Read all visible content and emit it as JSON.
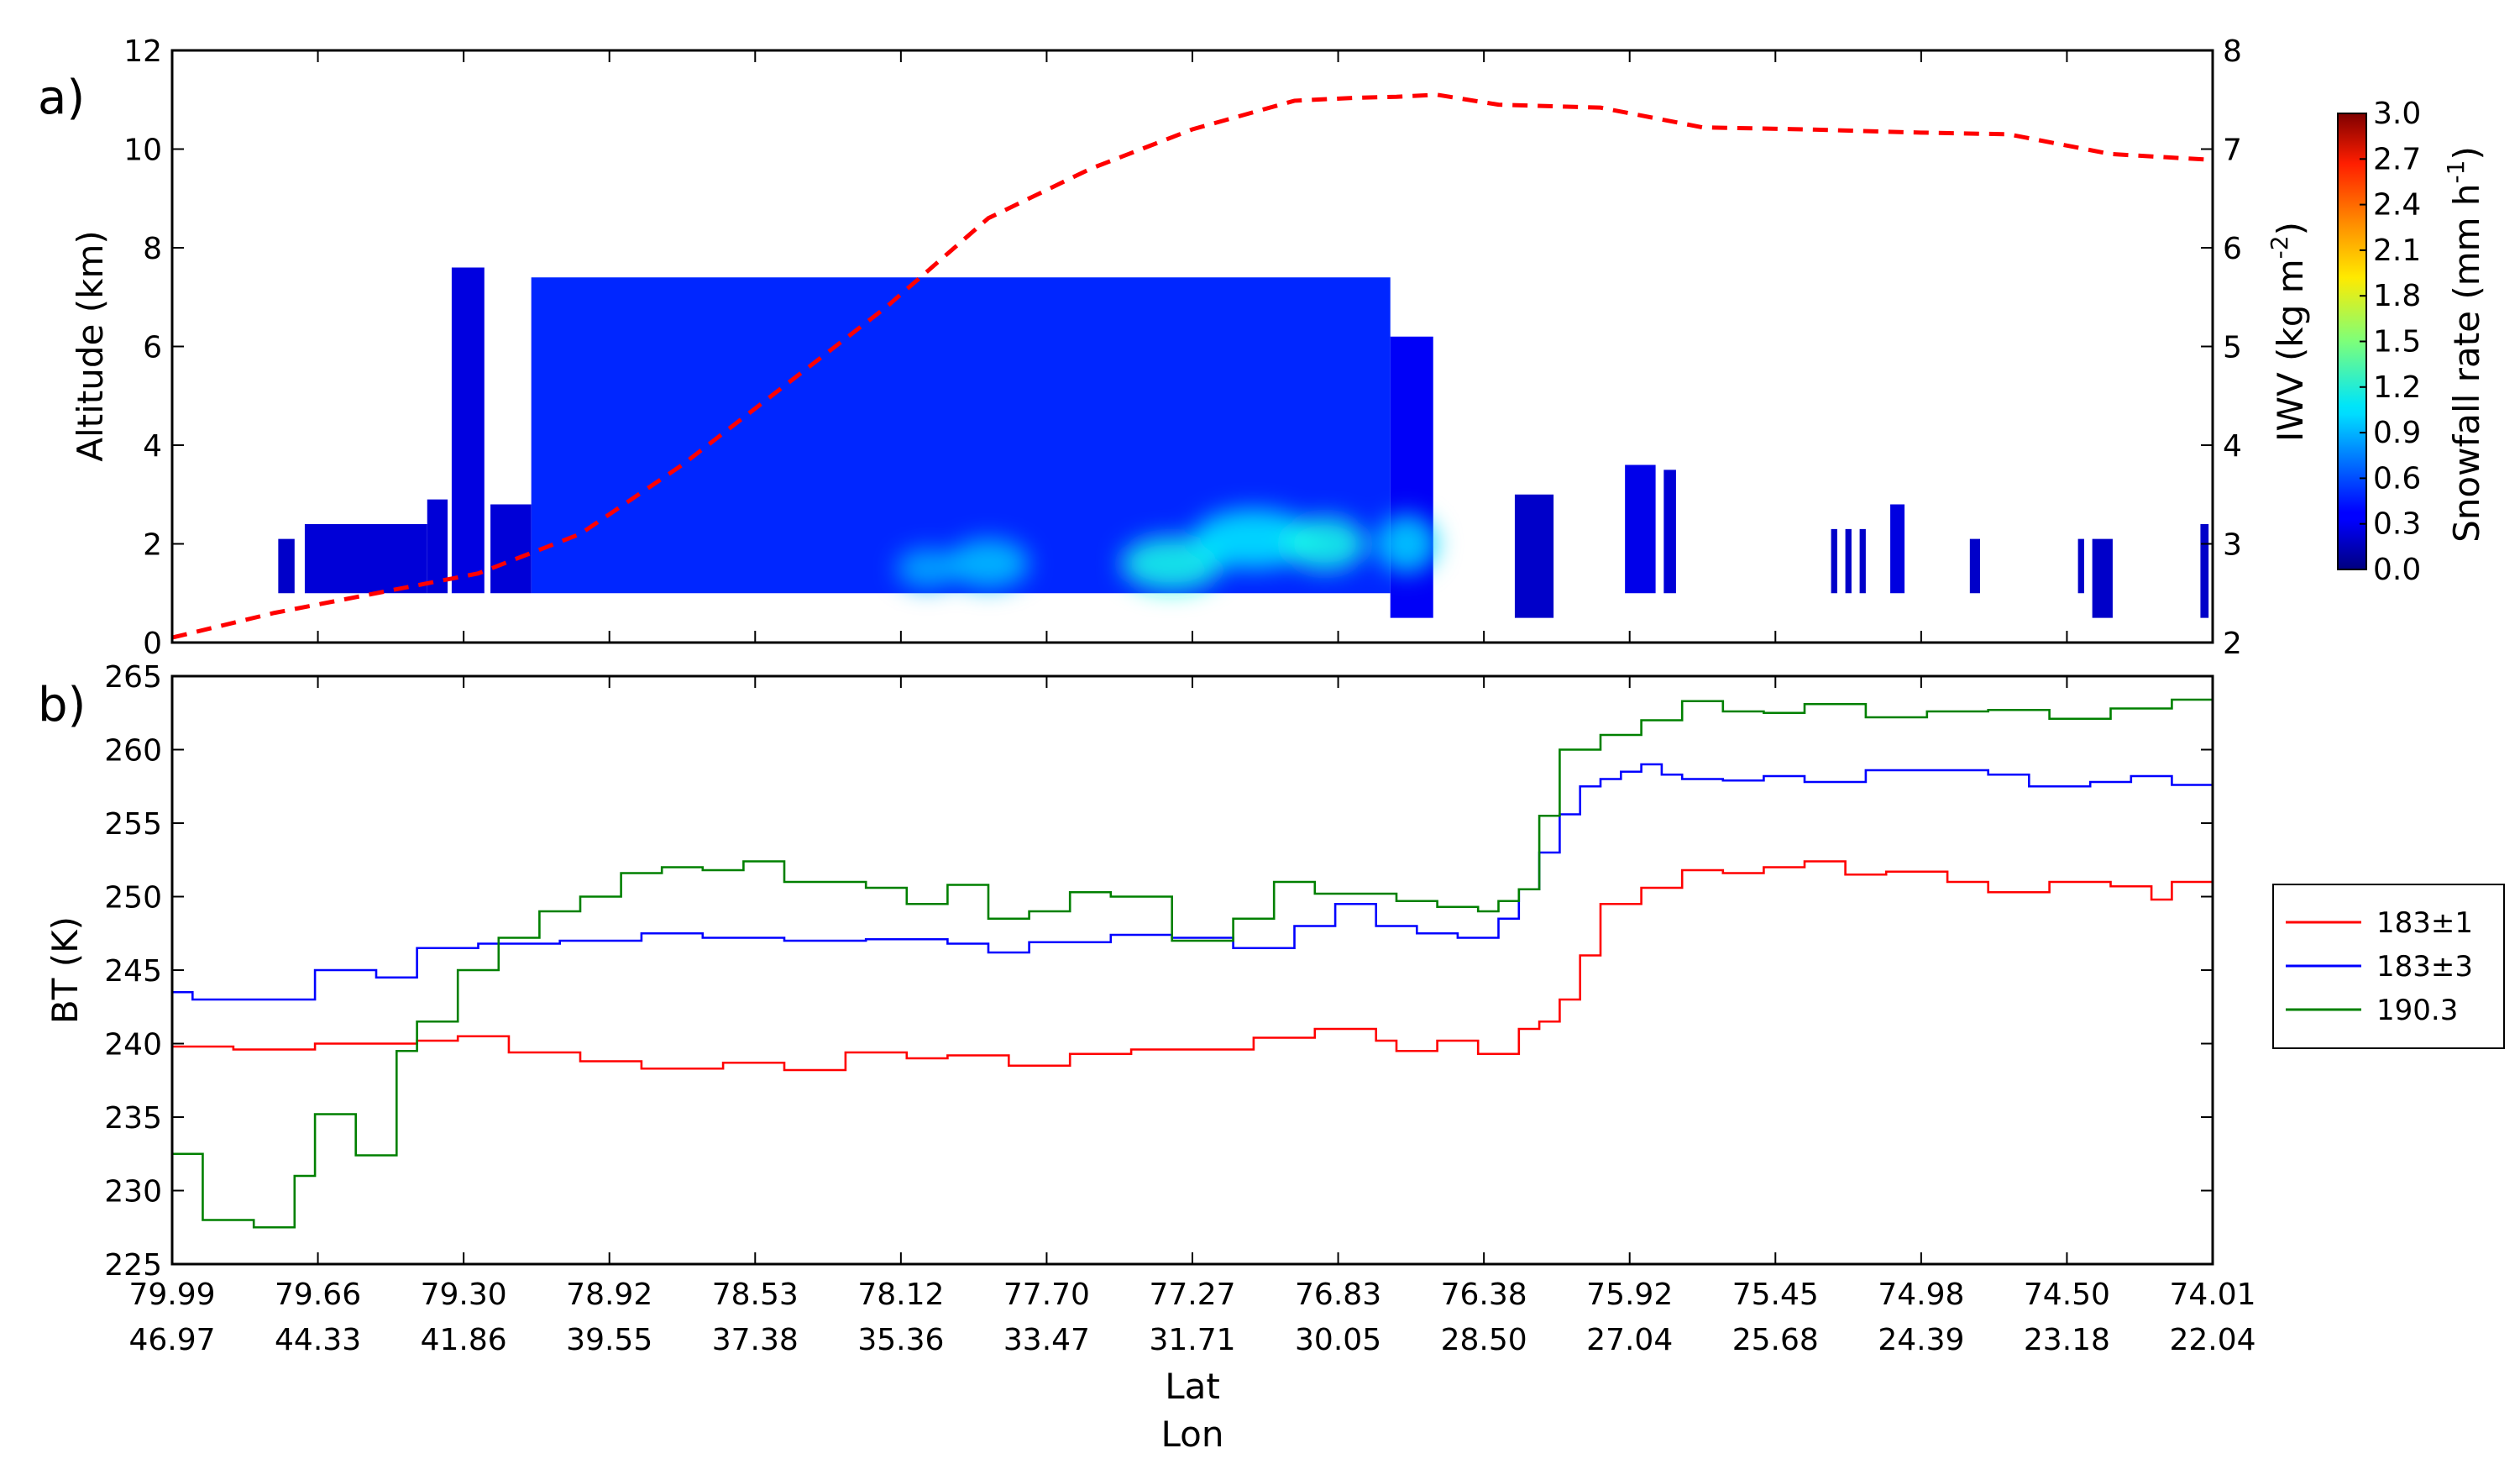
{
  "chart_data": [
    {
      "panel_label": "a)",
      "type": "heatmap",
      "ylabel": "Altitude (km)",
      "ylim": [
        0,
        12
      ],
      "yticks": [
        0,
        2,
        4,
        6,
        8,
        10,
        12
      ],
      "y2label_main": "IWV (kg m",
      "y2label_exp": "-2",
      "y2label_end": ")",
      "y2lim": [
        2,
        8
      ],
      "y2ticks": [
        2,
        3,
        4,
        5,
        6,
        7,
        8
      ],
      "colorbar": {
        "label_main": "Snowfall rate (mm h",
        "label_exp": "-1",
        "label_end": ")",
        "range": [
          0.0,
          3.0
        ],
        "ticks": [
          "0.0",
          "0.3",
          "0.6",
          "0.9",
          "1.2",
          "1.5",
          "1.8",
          "2.1",
          "2.4",
          "2.7",
          "3.0"
        ],
        "colormap": "jet"
      },
      "iwv_line": {
        "color": "#ff0000",
        "style": "dashed",
        "x_frac": [
          0.0,
          0.05,
          0.1,
          0.15,
          0.2,
          0.25,
          0.3,
          0.35,
          0.4,
          0.45,
          0.5,
          0.55,
          0.58,
          0.6,
          0.62,
          0.65,
          0.7,
          0.75,
          0.8,
          0.85,
          0.9,
          0.95,
          1.0
        ],
        "values": [
          2.05,
          2.3,
          2.5,
          2.7,
          3.1,
          3.8,
          4.6,
          5.4,
          6.3,
          6.8,
          7.2,
          7.49,
          7.52,
          7.53,
          7.55,
          7.45,
          7.42,
          7.22,
          7.2,
          7.17,
          7.15,
          6.95,
          6.89
        ]
      },
      "snow_cells": [
        {
          "x0": 0.052,
          "x1": 0.06,
          "top": 2.1,
          "bottom": 1.0,
          "intensity": 0.05
        },
        {
          "x0": 0.065,
          "x1": 0.125,
          "top": 2.4,
          "bottom": 1.0,
          "intensity": 0.08
        },
        {
          "x0": 0.125,
          "x1": 0.135,
          "top": 2.9,
          "bottom": 1.0,
          "intensity": 0.08
        },
        {
          "x0": 0.137,
          "x1": 0.153,
          "top": 7.6,
          "bottom": 1.0,
          "intensity": 0.1
        },
        {
          "x0": 0.156,
          "x1": 0.176,
          "top": 2.8,
          "bottom": 1.0,
          "intensity": 0.08
        },
        {
          "x0": 0.176,
          "x1": 0.597,
          "top": 7.4,
          "bottom": 1.0,
          "intensity": 0.25
        },
        {
          "x0": 0.597,
          "x1": 0.618,
          "top": 6.2,
          "bottom": 0.5,
          "intensity": 0.15
        },
        {
          "x0": 0.658,
          "x1": 0.677,
          "top": 3.0,
          "bottom": 0.5,
          "intensity": 0.05
        },
        {
          "x0": 0.712,
          "x1": 0.727,
          "top": 3.6,
          "bottom": 1.0,
          "intensity": 0.12
        },
        {
          "x0": 0.731,
          "x1": 0.737,
          "top": 3.5,
          "bottom": 1.0,
          "intensity": 0.08
        },
        {
          "x0": 0.813,
          "x1": 0.816,
          "top": 2.3,
          "bottom": 1.0,
          "intensity": 0.05
        },
        {
          "x0": 0.82,
          "x1": 0.823,
          "top": 2.3,
          "bottom": 1.0,
          "intensity": 0.05
        },
        {
          "x0": 0.827,
          "x1": 0.83,
          "top": 2.3,
          "bottom": 1.0,
          "intensity": 0.05
        },
        {
          "x0": 0.842,
          "x1": 0.849,
          "top": 2.8,
          "bottom": 1.0,
          "intensity": 0.1
        },
        {
          "x0": 0.881,
          "x1": 0.886,
          "top": 2.1,
          "bottom": 1.0,
          "intensity": 0.05
        },
        {
          "x0": 0.934,
          "x1": 0.937,
          "top": 2.1,
          "bottom": 1.0,
          "intensity": 0.05
        },
        {
          "x0": 0.941,
          "x1": 0.951,
          "top": 2.1,
          "bottom": 0.5,
          "intensity": 0.05
        },
        {
          "x0": 0.994,
          "x1": 0.998,
          "top": 2.4,
          "bottom": 0.5,
          "intensity": 0.05
        }
      ],
      "snow_hotspots": [
        {
          "x": 0.37,
          "y": 1.5,
          "rx": 0.015,
          "ry": 0.4,
          "intensity": 0.45
        },
        {
          "x": 0.4,
          "y": 1.6,
          "rx": 0.02,
          "ry": 0.5,
          "intensity": 0.5
        },
        {
          "x": 0.49,
          "y": 1.6,
          "rx": 0.025,
          "ry": 0.55,
          "intensity": 0.7
        },
        {
          "x": 0.53,
          "y": 2.1,
          "rx": 0.03,
          "ry": 0.6,
          "intensity": 0.6
        },
        {
          "x": 0.565,
          "y": 2.0,
          "rx": 0.02,
          "ry": 0.55,
          "intensity": 0.7
        },
        {
          "x": 0.605,
          "y": 2.0,
          "rx": 0.015,
          "ry": 0.6,
          "intensity": 0.55
        }
      ]
    },
    {
      "panel_label": "b)",
      "type": "line",
      "xlabel_line1": "Lat",
      "xlabel_line2": "Lon",
      "ylabel": "BT (K)",
      "ylim": [
        225,
        265
      ],
      "yticks": [
        225,
        230,
        235,
        240,
        245,
        250,
        255,
        260,
        265
      ],
      "x_tick_lat": [
        "79.99",
        "79.66",
        "79.30",
        "78.92",
        "78.53",
        "78.12",
        "77.70",
        "77.27",
        "76.83",
        "76.38",
        "75.92",
        "75.45",
        "74.98",
        "74.50",
        "74.01"
      ],
      "x_tick_lon": [
        "46.97",
        "44.33",
        "41.86",
        "39.55",
        "37.38",
        "35.36",
        "33.47",
        "31.71",
        "30.05",
        "28.50",
        "27.04",
        "25.68",
        "24.39",
        "23.18",
        "22.04"
      ],
      "legend_position": "right",
      "series": [
        {
          "name": "183±1",
          "color": "#ff0000",
          "x_frac": [
            0.0,
            0.03,
            0.07,
            0.12,
            0.14,
            0.165,
            0.2,
            0.23,
            0.27,
            0.3,
            0.33,
            0.36,
            0.38,
            0.41,
            0.44,
            0.47,
            0.5,
            0.53,
            0.56,
            0.59,
            0.6,
            0.62,
            0.64,
            0.66,
            0.67,
            0.68,
            0.69,
            0.7,
            0.72,
            0.74,
            0.76,
            0.78,
            0.8,
            0.82,
            0.84,
            0.87,
            0.89,
            0.92,
            0.95,
            0.97,
            0.98,
            1.0
          ],
          "values": [
            239.8,
            239.6,
            240.0,
            240.2,
            240.5,
            239.4,
            238.8,
            238.3,
            238.7,
            238.2,
            239.4,
            239.0,
            239.2,
            238.5,
            239.3,
            239.6,
            239.6,
            240.4,
            241.0,
            240.2,
            239.5,
            240.2,
            239.3,
            241.0,
            241.5,
            243.0,
            246.0,
            249.5,
            250.6,
            251.8,
            251.6,
            252.0,
            252.4,
            251.5,
            251.7,
            251.0,
            250.3,
            251.0,
            250.7,
            249.8,
            251.0,
            251.6
          ]
        },
        {
          "name": "183±3",
          "color": "#0000ff",
          "x_frac": [
            0.0,
            0.01,
            0.04,
            0.07,
            0.1,
            0.12,
            0.15,
            0.19,
            0.23,
            0.26,
            0.3,
            0.34,
            0.38,
            0.4,
            0.42,
            0.46,
            0.49,
            0.52,
            0.55,
            0.57,
            0.59,
            0.61,
            0.63,
            0.65,
            0.66,
            0.67,
            0.68,
            0.69,
            0.7,
            0.71,
            0.72,
            0.73,
            0.74,
            0.76,
            0.78,
            0.8,
            0.83,
            0.86,
            0.89,
            0.91,
            0.94,
            0.96,
            0.98,
            1.0
          ],
          "values": [
            243.5,
            243.0,
            243.0,
            245.0,
            244.5,
            246.5,
            246.8,
            247.0,
            247.5,
            247.2,
            247.0,
            247.1,
            246.8,
            246.2,
            246.9,
            247.4,
            247.2,
            246.5,
            248.0,
            249.5,
            248.0,
            247.5,
            247.2,
            248.5,
            250.5,
            253.0,
            255.6,
            257.5,
            258.0,
            258.5,
            259.0,
            258.3,
            258.0,
            257.9,
            258.2,
            257.8,
            258.6,
            258.6,
            258.3,
            257.5,
            257.8,
            258.2,
            257.6,
            257.8
          ]
        },
        {
          "name": "190.3",
          "color": "#008000",
          "x_frac": [
            0.0,
            0.015,
            0.04,
            0.06,
            0.07,
            0.09,
            0.11,
            0.12,
            0.14,
            0.16,
            0.18,
            0.2,
            0.22,
            0.24,
            0.26,
            0.28,
            0.3,
            0.34,
            0.36,
            0.38,
            0.4,
            0.42,
            0.44,
            0.46,
            0.49,
            0.52,
            0.54,
            0.56,
            0.58,
            0.6,
            0.62,
            0.64,
            0.65,
            0.66,
            0.67,
            0.68,
            0.7,
            0.72,
            0.74,
            0.76,
            0.78,
            0.8,
            0.83,
            0.86,
            0.89,
            0.92,
            0.95,
            0.98,
            1.0
          ],
          "values": [
            232.5,
            228.0,
            227.5,
            231.0,
            235.2,
            232.4,
            239.5,
            241.5,
            245.0,
            247.2,
            249.0,
            250.0,
            251.6,
            252.0,
            251.8,
            252.4,
            251.0,
            250.6,
            249.5,
            250.8,
            248.5,
            249.0,
            250.3,
            250.0,
            247.0,
            248.5,
            251.0,
            250.2,
            250.2,
            249.7,
            249.3,
            249.0,
            249.7,
            250.5,
            255.5,
            260.0,
            261.0,
            262.0,
            263.3,
            262.6,
            262.5,
            263.1,
            262.2,
            262.6,
            262.7,
            262.1,
            262.8,
            263.4,
            262.6
          ]
        }
      ]
    }
  ]
}
